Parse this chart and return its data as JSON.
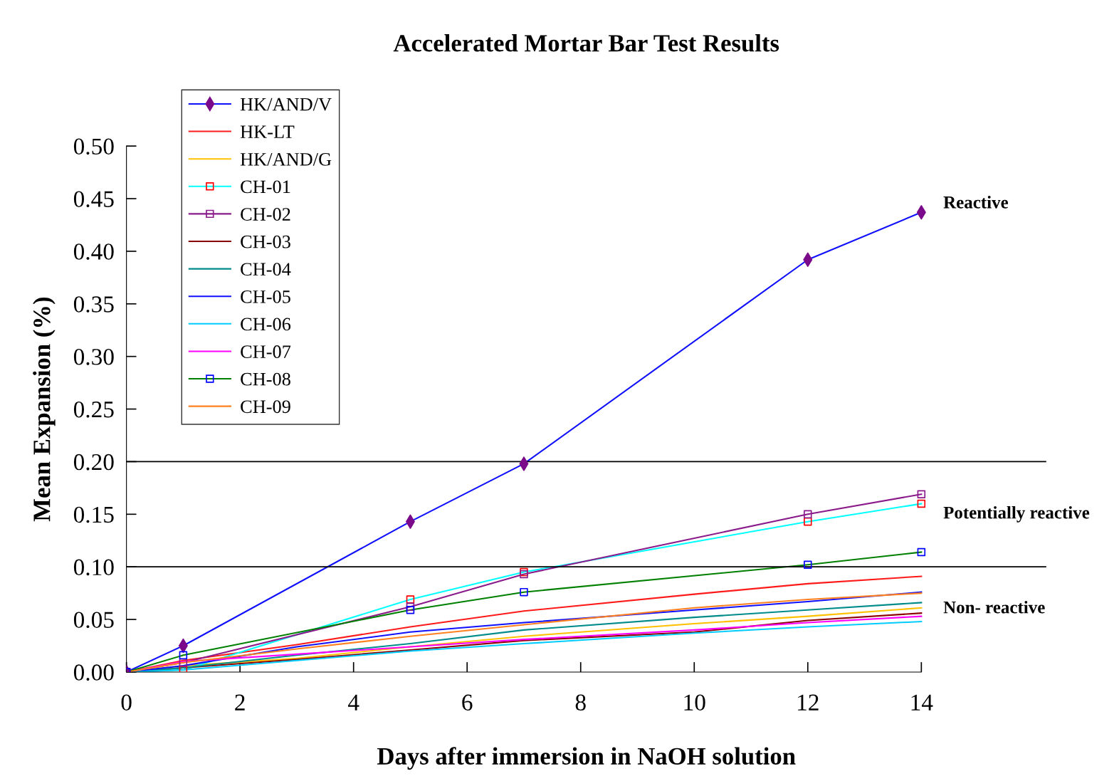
{
  "chart_data": {
    "type": "line",
    "title": "Accelerated Mortar Bar Test Results",
    "xlabel": "Days after immersion in NaOH solution",
    "ylabel": "Mean Expansion (%)",
    "xlim": [
      0,
      16.2
    ],
    "xticks": [
      0,
      2,
      4,
      6,
      8,
      10,
      12,
      14
    ],
    "ylim": [
      0,
      0.5
    ],
    "yticks": [
      {
        "value": 0,
        "label": "0.00"
      },
      {
        "value": 0.05,
        "label": "0.05"
      },
      {
        "value": 0.1,
        "label": "0.10"
      },
      {
        "value": 0.15,
        "label": "0.15"
      },
      {
        "value": 0.2,
        "label": "0.20"
      },
      {
        "value": 0.25,
        "label": "0.25"
      },
      {
        "value": 0.3,
        "label": "0.30"
      },
      {
        "value": 0.35,
        "label": "0.35"
      },
      {
        "value": 0.4,
        "label": "0.40"
      },
      {
        "value": 0.45,
        "label": "0.45"
      },
      {
        "value": 0.5,
        "label": "0.50"
      }
    ],
    "grid": false,
    "legend": "top left",
    "line_style": "solid",
    "ref_lines": [
      {
        "axis": "y",
        "value": 0.1,
        "color": "#000000"
      },
      {
        "axis": "y",
        "value": 0.2,
        "color": "#000000"
      }
    ],
    "annotations": [
      "Reactive",
      "Potentially reactive",
      "Non- reactive"
    ],
    "series": [
      {
        "name": "HK/AND/V",
        "color": "#1010ff",
        "marker": "diamond",
        "colors": [
          "#7a0a8a",
          "#7a0a8a",
          "#7a0a8a",
          "#7a0a8a",
          "#7a0a8a",
          "#7a0a8a"
        ],
        "x": [
          0,
          1,
          5,
          7,
          12,
          14
        ],
        "values": [
          0,
          0.025,
          0.143,
          0.198,
          0.392,
          0.437
        ]
      },
      {
        "name": "HK-LT",
        "color": "#ff1a1a",
        "marker": "none",
        "x": [
          0,
          1,
          3,
          5,
          7,
          10,
          12,
          14
        ],
        "values": [
          0,
          0.011,
          0.026,
          0.043,
          0.058,
          0.074,
          0.084,
          0.091
        ]
      },
      {
        "name": "HK/AND/G",
        "color": "#ffc000",
        "marker": "none",
        "x": [
          0,
          1,
          3,
          5,
          7,
          10,
          12,
          14
        ],
        "values": [
          0,
          0.006,
          0.013,
          0.024,
          0.034,
          0.046,
          0.053,
          0.061
        ]
      },
      {
        "name": "CH-01",
        "color": "#00ffff",
        "marker": "square",
        "colors": [
          "#ff0000",
          "#ff0000",
          "#ff0000",
          "#ff0000",
          "#ff0000",
          "#ff0000"
        ],
        "x": [
          0,
          1,
          5,
          7,
          12,
          14
        ],
        "values": [
          0,
          0.002,
          0.069,
          0.095,
          0.143,
          0.16
        ]
      },
      {
        "name": "CH-02",
        "color": "#8b1a8b",
        "marker": "square",
        "x": [
          0,
          1,
          5,
          7,
          12,
          14
        ],
        "values": [
          0,
          0.009,
          0.062,
          0.093,
          0.15,
          0.169
        ]
      },
      {
        "name": "CH-03",
        "color": "#8b0000",
        "marker": "none",
        "x": [
          0,
          1,
          3,
          5,
          7,
          10,
          12,
          14
        ],
        "values": [
          0,
          0.004,
          0.012,
          0.021,
          0.03,
          0.038,
          0.049,
          0.056
        ]
      },
      {
        "name": "CH-04",
        "color": "#008b8b",
        "marker": "none",
        "x": [
          0,
          1,
          3,
          5,
          7,
          10,
          12,
          14
        ],
        "values": [
          0,
          0.004,
          0.016,
          0.027,
          0.04,
          0.052,
          0.059,
          0.066
        ]
      },
      {
        "name": "CH-05",
        "color": "#1010ff",
        "marker": "none",
        "x": [
          0,
          1,
          3,
          5,
          7,
          10,
          12,
          14
        ],
        "values": [
          0,
          0.006,
          0.024,
          0.038,
          0.047,
          0.059,
          0.067,
          0.076
        ]
      },
      {
        "name": "CH-06",
        "color": "#00ccff",
        "marker": "none",
        "x": [
          0,
          1,
          3,
          5,
          7,
          10,
          12,
          14
        ],
        "values": [
          0,
          0.002,
          0.011,
          0.02,
          0.027,
          0.037,
          0.043,
          0.048
        ]
      },
      {
        "name": "CH-07",
        "color": "#ff00ff",
        "marker": "none",
        "x": [
          0,
          1,
          3,
          5,
          7,
          10,
          12,
          14
        ],
        "values": [
          0,
          0.01,
          0.017,
          0.024,
          0.031,
          0.04,
          0.047,
          0.053
        ]
      },
      {
        "name": "CH-08",
        "color": "#008000",
        "marker": "square",
        "colors": [
          "#0000ff",
          "#0000ff",
          "#0000ff",
          "#0000ff",
          "#0000ff",
          "#0000ff"
        ],
        "x": [
          0,
          1,
          5,
          7,
          12,
          14
        ],
        "values": [
          0,
          0.016,
          0.059,
          0.076,
          0.102,
          0.114
        ]
      },
      {
        "name": "CH-09",
        "color": "#ff8020",
        "marker": "none",
        "x": [
          0,
          1,
          3,
          5,
          7,
          10,
          12,
          14
        ],
        "values": [
          0,
          0.009,
          0.022,
          0.034,
          0.045,
          0.061,
          0.069,
          0.075
        ]
      }
    ]
  }
}
